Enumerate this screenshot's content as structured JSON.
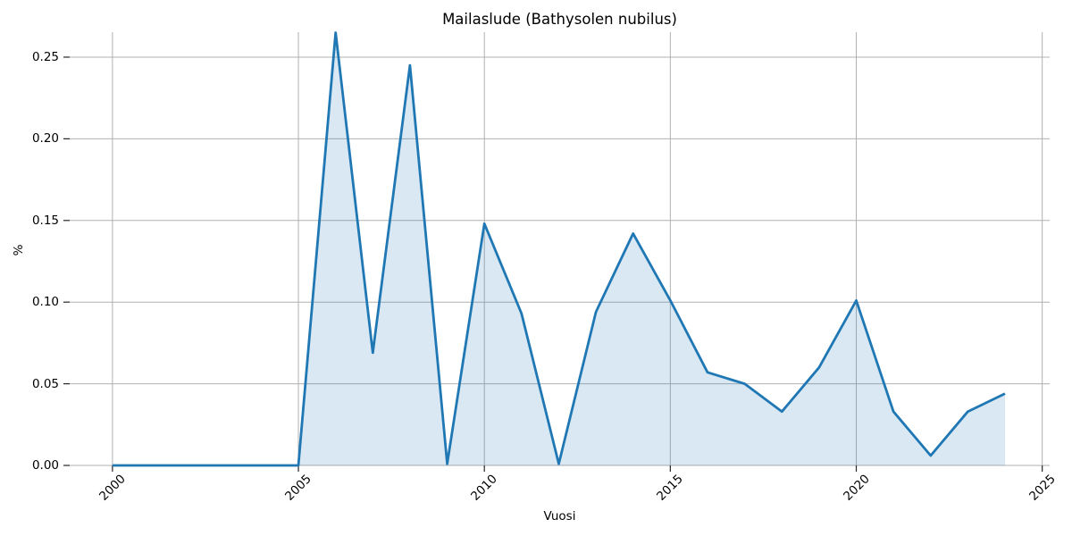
{
  "chart_data": {
    "type": "area",
    "title": "Mailaslude (Bathysolen nubilus)",
    "xlabel": "Vuosi",
    "ylabel": "%",
    "x": [
      2000,
      2001,
      2002,
      2003,
      2004,
      2005,
      2006,
      2007,
      2008,
      2009,
      2010,
      2011,
      2012,
      2013,
      2014,
      2015,
      2016,
      2017,
      2018,
      2019,
      2020,
      2021,
      2022,
      2023,
      2024
    ],
    "values": [
      0.0,
      0.0,
      0.0,
      0.0,
      0.0,
      0.0,
      0.265,
      0.069,
      0.245,
      0.001,
      0.148,
      0.093,
      0.001,
      0.094,
      0.142,
      0.101,
      0.057,
      0.05,
      0.033,
      0.06,
      0.101,
      0.033,
      0.006,
      0.033,
      0.044
    ],
    "xtick_values": [
      2000,
      2005,
      2010,
      2015,
      2020,
      2025
    ],
    "xtick_labels": [
      "2000",
      "2005",
      "2010",
      "2015",
      "2020",
      "2025"
    ],
    "ytick_values": [
      0.0,
      0.05,
      0.1,
      0.15,
      0.2,
      0.25
    ],
    "ytick_labels": [
      "0.00",
      "0.05",
      "0.10",
      "0.15",
      "0.20",
      "0.25"
    ],
    "xlim": [
      1998.85,
      2025.2
    ],
    "ylim": [
      0,
      0.2653
    ],
    "grid": true,
    "legend": "none",
    "line_color": "#1f77b4",
    "fill_color": "#1f77b4",
    "fill_opacity": 0.17,
    "grid_color": "#b0b0b0",
    "tick_color": "#262626"
  }
}
